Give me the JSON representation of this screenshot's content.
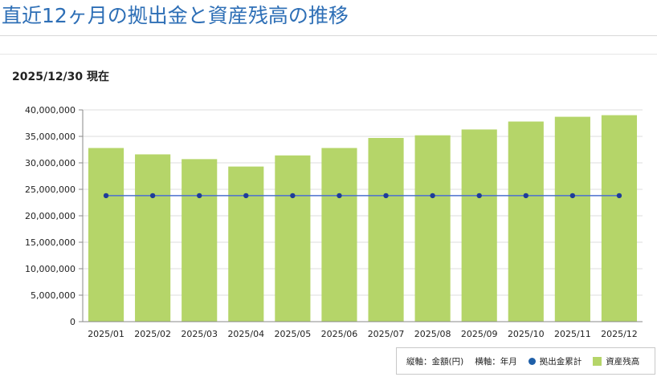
{
  "page": {
    "title": "直近12ヶ月の拠出金と資産残高の推移",
    "as_of": "2025/12/30 現在"
  },
  "legend": {
    "y_axis_note": "縦軸：金額(円)",
    "x_axis_note": "横軸：年月",
    "contribution_label": "拠出金累計",
    "balance_label": "資産残高"
  },
  "colors": {
    "title": "#2e6fb6",
    "bar": "#b5d569",
    "line": "#4b6fd0",
    "marker": "#1f3c99",
    "legend_dot": "#1f5fa8"
  },
  "chart_data": {
    "type": "bar",
    "categories": [
      "2025/01",
      "2025/02",
      "2025/03",
      "2025/04",
      "2025/05",
      "2025/06",
      "2025/07",
      "2025/08",
      "2025/09",
      "2025/10",
      "2025/11",
      "2025/12"
    ],
    "series": [
      {
        "name": "資産残高",
        "kind": "bar",
        "values": [
          32800000,
          31600000,
          30700000,
          29300000,
          31400000,
          32800000,
          34700000,
          35200000,
          36300000,
          37800000,
          38700000,
          39000000
        ]
      },
      {
        "name": "拠出金累計",
        "kind": "line",
        "values": [
          23800000,
          23800000,
          23800000,
          23800000,
          23800000,
          23800000,
          23800000,
          23800000,
          23800000,
          23800000,
          23800000,
          23800000
        ]
      }
    ],
    "yticks": [
      "0",
      "5,000,000",
      "10,000,000",
      "15,000,000",
      "20,000,000",
      "25,000,000",
      "30,000,000",
      "35,000,000",
      "40,000,000"
    ],
    "ylim": [
      0,
      40000000
    ],
    "grid": true,
    "legend_position": "bottom-right"
  }
}
